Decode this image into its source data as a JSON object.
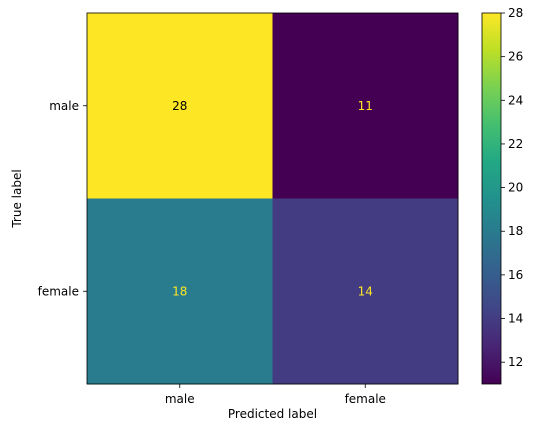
{
  "chart_data": {
    "type": "heatmap",
    "title": "",
    "xlabel": "Predicted label",
    "ylabel": "True label",
    "x_categories": [
      "male",
      "female"
    ],
    "y_categories": [
      "male",
      "female"
    ],
    "matrix": [
      [
        28,
        11
      ],
      [
        18,
        14
      ]
    ],
    "colormap": "viridis",
    "color_range": [
      11,
      28
    ],
    "colorbar_ticks": [
      12,
      14,
      16,
      18,
      20,
      22,
      24,
      26,
      28
    ],
    "text_colors": {
      "on_dark": "#fde725",
      "on_light": "#000000"
    },
    "grid": false
  }
}
